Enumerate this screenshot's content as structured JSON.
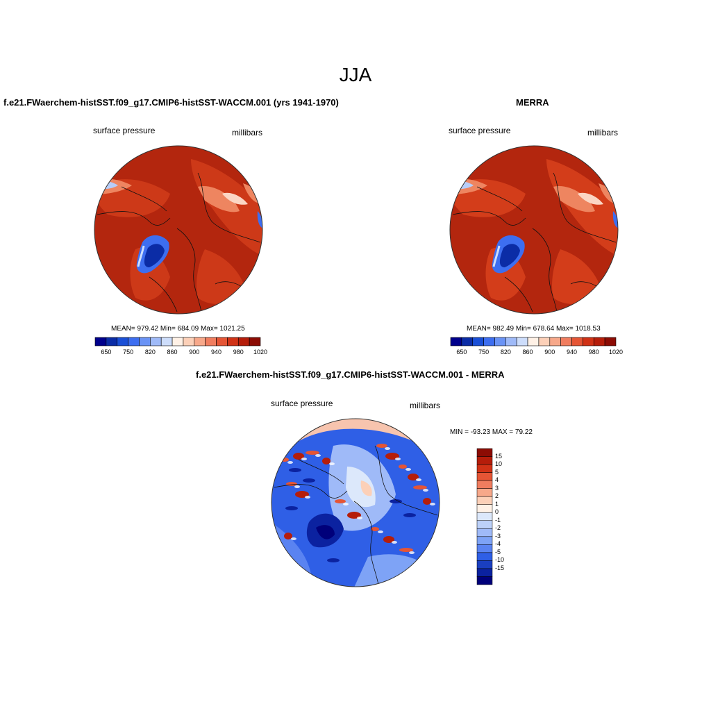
{
  "title": "JJA",
  "panels": [
    {
      "title": "f.e21.FWaerchem-histSST.f09_g17.CMIP6-histSST-WACCM.001 (yrs 1941-1970)",
      "left_label": "surface pressure",
      "right_label": "millibars",
      "stats": {
        "mean": "979.42",
        "min": "684.09",
        "max": "1021.25"
      },
      "stats_text": "MEAN= 979.42  Min= 684.09  Max= 1021.25"
    },
    {
      "title": "MERRA",
      "left_label": "surface pressure",
      "right_label": "millibars",
      "stats": {
        "mean": "982.49",
        "min": "678.64",
        "max": "1018.53"
      },
      "stats_text": "MEAN= 982.49  Min= 678.64  Max= 1018.53"
    },
    {
      "title": "f.e21.FWaerchem-histSST.f09_g17.CMIP6-histSST-WACCM.001 - MERRA",
      "left_label": "surface pressure",
      "right_label": "millibars",
      "stats": {
        "min": "-93.23",
        "max": "79.22"
      },
      "stats_text": "MIN = -93.23 MAX =  79.22"
    }
  ],
  "colorbar_horizontal": {
    "colors": [
      "#00008c",
      "#0b2ca6",
      "#1a4fd6",
      "#3d6ef0",
      "#6a93f5",
      "#9fbaf8",
      "#cdddfb",
      "#fff1e6",
      "#fcd0b8",
      "#f7a88a",
      "#f07d5f",
      "#e55535",
      "#d03216",
      "#b51d0a",
      "#8c0c04"
    ],
    "tick_labels": [
      "650",
      "750",
      "820",
      "860",
      "900",
      "940",
      "980",
      "1020"
    ]
  },
  "colorbar_vertical": {
    "colors": [
      "#8c0c04",
      "#b51d0a",
      "#d03216",
      "#e55535",
      "#f07d5f",
      "#f7a88a",
      "#fcd0b8",
      "#fff1e6",
      "#dce8fb",
      "#bcd1f9",
      "#9fbaf8",
      "#7ea3f6",
      "#5a83f1",
      "#2f5fe6",
      "#1a3fc0",
      "#0b22a0",
      "#00007a"
    ],
    "tick_labels": [
      "15",
      "10",
      "5",
      "4",
      "3",
      "2",
      "1",
      "0",
      "-1",
      "-2",
      "-3",
      "-4",
      "-5",
      "-10",
      "-15"
    ]
  }
}
